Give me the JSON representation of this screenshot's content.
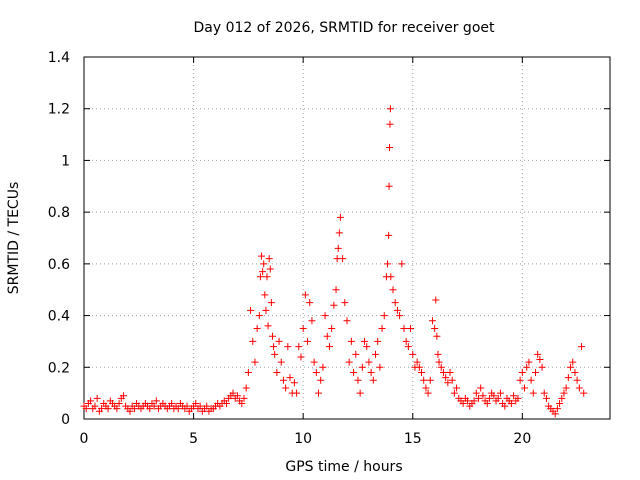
{
  "chart_data": {
    "type": "scatter",
    "title": "Day 012 of 2026, SRMTID for receiver goet",
    "xlabel": "GPS time / hours",
    "ylabel": "SRMTID / TECUs",
    "xlim": [
      0,
      24
    ],
    "ylim": [
      0,
      1.4
    ],
    "x_ticks": [
      0,
      5,
      10,
      15,
      20
    ],
    "x_tick_labels": [
      "0",
      "5",
      "10",
      "15",
      "20"
    ],
    "y_ticks": [
      0,
      0.2,
      0.4,
      0.6,
      0.8,
      1,
      1.2,
      1.4
    ],
    "y_tick_labels": [
      "0",
      "0.2",
      "0.4",
      "0.6",
      "0.8",
      "1",
      "1.2",
      "1.4"
    ],
    "grid": true,
    "marker": "+",
    "color": "#ff0000",
    "series": [
      {
        "name": "SRMTID",
        "x": [
          0.0,
          0.1,
          0.2,
          0.3,
          0.4,
          0.5,
          0.6,
          0.7,
          0.8,
          0.9,
          1.0,
          1.1,
          1.2,
          1.3,
          1.4,
          1.5,
          1.6,
          1.7,
          1.8,
          1.9,
          2.0,
          2.1,
          2.2,
          2.3,
          2.4,
          2.5,
          2.6,
          2.7,
          2.8,
          2.9,
          3.0,
          3.1,
          3.2,
          3.3,
          3.4,
          3.5,
          3.6,
          3.7,
          3.8,
          3.9,
          4.0,
          4.1,
          4.2,
          4.3,
          4.4,
          4.5,
          4.6,
          4.7,
          4.8,
          4.9,
          5.0,
          5.1,
          5.2,
          5.3,
          5.4,
          5.5,
          5.6,
          5.7,
          5.8,
          5.9,
          6.0,
          6.1,
          6.2,
          6.3,
          6.4,
          6.5,
          6.6,
          6.7,
          6.8,
          6.9,
          7.0,
          7.1,
          7.2,
          7.3,
          7.4,
          7.5,
          7.6,
          7.7,
          7.8,
          7.9,
          8.0,
          8.05,
          8.1,
          8.15,
          8.2,
          8.25,
          8.3,
          8.35,
          8.4,
          8.45,
          8.5,
          8.55,
          8.6,
          8.65,
          8.7,
          8.8,
          8.9,
          9.0,
          9.1,
          9.2,
          9.3,
          9.4,
          9.5,
          9.6,
          9.7,
          9.8,
          9.9,
          10.0,
          10.1,
          10.2,
          10.3,
          10.4,
          10.5,
          10.6,
          10.7,
          10.8,
          10.9,
          11.0,
          11.1,
          11.2,
          11.3,
          11.4,
          11.5,
          11.55,
          11.6,
          11.65,
          11.7,
          11.8,
          11.9,
          12.0,
          12.1,
          12.2,
          12.3,
          12.4,
          12.5,
          12.6,
          12.7,
          12.8,
          12.9,
          13.0,
          13.1,
          13.2,
          13.3,
          13.4,
          13.5,
          13.6,
          13.7,
          13.8,
          13.85,
          13.9,
          13.92,
          13.94,
          13.96,
          13.98,
          14.0,
          14.1,
          14.2,
          14.3,
          14.4,
          14.5,
          14.6,
          14.7,
          14.8,
          14.9,
          15.0,
          15.1,
          15.2,
          15.3,
          15.4,
          15.5,
          15.6,
          15.7,
          15.8,
          15.9,
          16.0,
          16.05,
          16.1,
          16.15,
          16.2,
          16.3,
          16.4,
          16.5,
          16.6,
          16.7,
          16.8,
          16.9,
          17.0,
          17.1,
          17.2,
          17.3,
          17.4,
          17.5,
          17.6,
          17.7,
          17.8,
          17.9,
          18.0,
          18.1,
          18.2,
          18.3,
          18.4,
          18.5,
          18.6,
          18.7,
          18.8,
          18.9,
          19.0,
          19.1,
          19.2,
          19.3,
          19.4,
          19.5,
          19.6,
          19.7,
          19.8,
          19.9,
          20.0,
          20.1,
          20.2,
          20.3,
          20.4,
          20.5,
          20.6,
          20.7,
          20.8,
          20.9,
          21.0,
          21.1,
          21.2,
          21.3,
          21.4,
          21.5,
          21.6,
          21.7,
          21.8,
          21.9,
          22.0,
          22.1,
          22.2,
          22.3,
          22.4,
          22.5,
          22.6,
          22.7,
          22.8
        ],
        "y": [
          0.05,
          0.04,
          0.06,
          0.07,
          0.04,
          0.05,
          0.08,
          0.03,
          0.04,
          0.06,
          0.05,
          0.04,
          0.07,
          0.06,
          0.05,
          0.04,
          0.06,
          0.08,
          0.09,
          0.05,
          0.04,
          0.03,
          0.05,
          0.04,
          0.06,
          0.05,
          0.04,
          0.05,
          0.06,
          0.05,
          0.04,
          0.06,
          0.05,
          0.07,
          0.04,
          0.05,
          0.06,
          0.05,
          0.04,
          0.05,
          0.06,
          0.04,
          0.05,
          0.04,
          0.06,
          0.05,
          0.04,
          0.05,
          0.03,
          0.04,
          0.05,
          0.06,
          0.04,
          0.05,
          0.03,
          0.04,
          0.05,
          0.03,
          0.04,
          0.04,
          0.05,
          0.06,
          0.05,
          0.06,
          0.07,
          0.06,
          0.08,
          0.09,
          0.1,
          0.08,
          0.09,
          0.07,
          0.06,
          0.08,
          0.12,
          0.18,
          0.42,
          0.3,
          0.22,
          0.35,
          0.4,
          0.55,
          0.63,
          0.57,
          0.6,
          0.48,
          0.42,
          0.55,
          0.36,
          0.62,
          0.58,
          0.45,
          0.32,
          0.28,
          0.25,
          0.18,
          0.3,
          0.22,
          0.15,
          0.12,
          0.28,
          0.16,
          0.1,
          0.14,
          0.1,
          0.28,
          0.24,
          0.35,
          0.48,
          0.3,
          0.45,
          0.38,
          0.22,
          0.18,
          0.1,
          0.15,
          0.2,
          0.4,
          0.32,
          0.28,
          0.35,
          0.44,
          0.5,
          0.62,
          0.66,
          0.72,
          0.78,
          0.62,
          0.45,
          0.38,
          0.22,
          0.3,
          0.18,
          0.25,
          0.15,
          0.1,
          0.2,
          0.3,
          0.28,
          0.22,
          0.18,
          0.15,
          0.25,
          0.3,
          0.2,
          0.35,
          0.4,
          0.55,
          0.6,
          0.71,
          0.9,
          1.05,
          1.14,
          1.2,
          0.55,
          0.5,
          0.45,
          0.42,
          0.4,
          0.6,
          0.35,
          0.3,
          0.28,
          0.35,
          0.25,
          0.2,
          0.22,
          0.2,
          0.18,
          0.15,
          0.12,
          0.1,
          0.15,
          0.38,
          0.35,
          0.46,
          0.32,
          0.25,
          0.22,
          0.2,
          0.18,
          0.16,
          0.14,
          0.18,
          0.15,
          0.1,
          0.12,
          0.08,
          0.07,
          0.06,
          0.08,
          0.07,
          0.05,
          0.06,
          0.07,
          0.1,
          0.08,
          0.12,
          0.09,
          0.07,
          0.06,
          0.08,
          0.1,
          0.09,
          0.07,
          0.08,
          0.1,
          0.06,
          0.05,
          0.08,
          0.07,
          0.06,
          0.09,
          0.07,
          0.08,
          0.15,
          0.18,
          0.12,
          0.2,
          0.22,
          0.15,
          0.1,
          0.18,
          0.25,
          0.23,
          0.2,
          0.1,
          0.08,
          0.05,
          0.04,
          0.03,
          0.02,
          0.04,
          0.06,
          0.08,
          0.1,
          0.12,
          0.16,
          0.2,
          0.22,
          0.18,
          0.15,
          0.12,
          0.28,
          0.1
        ]
      }
    ]
  }
}
